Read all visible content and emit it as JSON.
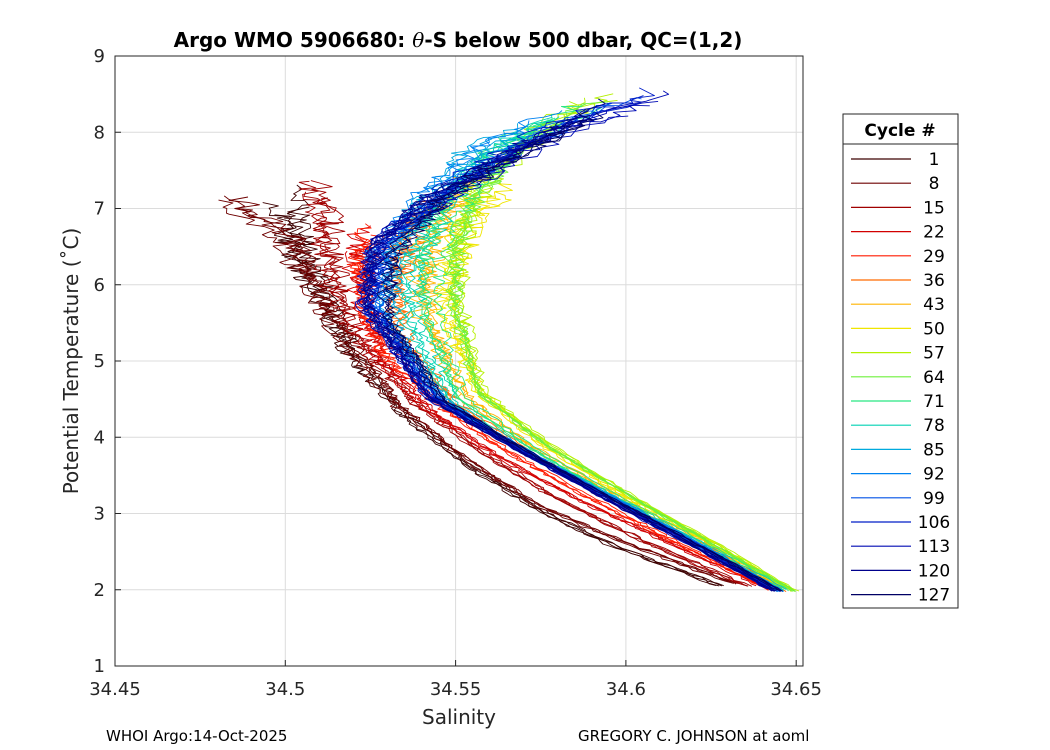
{
  "chart_data": {
    "type": "line",
    "title_prefix": "Argo WMO 5906680: ",
    "title_theta": "θ",
    "title_suffix": "-S below 500 dbar,  QC=(1,2)",
    "xlabel": "Salinity",
    "ylabel": "Potential Temperature (˚C)",
    "xlim": [
      34.45,
      34.652
    ],
    "ylim": [
      1,
      9
    ],
    "x_ticks": [
      34.45,
      34.5,
      34.55,
      34.6,
      34.65
    ],
    "x_tick_labels": [
      "34.45",
      "34.5",
      "34.55",
      "34.6",
      "34.65"
    ],
    "y_ticks": [
      1,
      2,
      3,
      4,
      5,
      6,
      7,
      8,
      9
    ],
    "y_tick_labels": [
      "1",
      "2",
      "3",
      "4",
      "5",
      "6",
      "7",
      "8",
      "9"
    ],
    "grid": true,
    "legend_title": "Cycle #",
    "legend_position": "right-outside",
    "colormap": [
      "#3c0000",
      "#6e0000",
      "#a00000",
      "#d20000",
      "#ff1a00",
      "#ff6a00",
      "#ffb400",
      "#f0e600",
      "#b4f000",
      "#6ef03c",
      "#28e682",
      "#00d2b4",
      "#00aade",
      "#0082f0",
      "#0050e6",
      "#001ec8",
      "#000ab4",
      "#00008c",
      "#000064"
    ],
    "series": [
      {
        "name": "1",
        "s": [
          34.5,
          34.505,
          34.512,
          34.52,
          34.535,
          34.555,
          34.575,
          34.598,
          34.628
        ],
        "t": [
          7.3,
          6.4,
          5.8,
          5.1,
          4.3,
          3.6,
          3.05,
          2.55,
          2.05
        ]
      },
      {
        "name": "8",
        "s": [
          34.48,
          34.5,
          34.508,
          34.518,
          34.533,
          34.553,
          34.574,
          34.6,
          34.632
        ],
        "t": [
          7.2,
          6.6,
          5.9,
          5.2,
          4.4,
          3.7,
          3.1,
          2.6,
          2.08
        ]
      },
      {
        "name": "15",
        "s": [
          34.51,
          34.512,
          34.515,
          34.522,
          34.537,
          34.558,
          34.58,
          34.605,
          34.636
        ],
        "t": [
          7.5,
          6.8,
          6.0,
          5.3,
          4.5,
          3.8,
          3.2,
          2.65,
          2.05
        ]
      },
      {
        "name": "22",
        "s": [
          34.52,
          34.521,
          34.523,
          34.528,
          34.542,
          34.562,
          34.585,
          34.612,
          34.641
        ],
        "t": [
          6.8,
          6.2,
          5.6,
          5.0,
          4.35,
          3.75,
          3.2,
          2.62,
          2.02
        ]
      },
      {
        "name": "29",
        "s": [
          34.525,
          34.524,
          34.525,
          34.53,
          34.545,
          34.566,
          34.59,
          34.616,
          34.643
        ],
        "t": [
          6.9,
          6.2,
          5.6,
          5.1,
          4.45,
          3.8,
          3.2,
          2.6,
          2.0
        ]
      },
      {
        "name": "36",
        "s": [
          34.545,
          34.535,
          34.532,
          34.535,
          34.55,
          34.571,
          34.596,
          34.622,
          34.648
        ],
        "t": [
          7.3,
          6.6,
          5.9,
          5.2,
          4.45,
          3.8,
          3.2,
          2.6,
          1.98
        ]
      },
      {
        "name": "43",
        "s": [
          34.56,
          34.545,
          34.54,
          34.541,
          34.553,
          34.573,
          34.598,
          34.624,
          34.648
        ],
        "t": [
          7.6,
          6.9,
          6.2,
          5.5,
          4.5,
          3.85,
          3.2,
          2.6,
          1.97
        ]
      },
      {
        "name": "50",
        "s": [
          34.565,
          34.552,
          34.548,
          34.547,
          34.556,
          34.575,
          34.6,
          34.625,
          34.649
        ],
        "t": [
          7.4,
          6.8,
          6.2,
          5.6,
          4.6,
          3.9,
          3.2,
          2.6,
          1.97
        ]
      },
      {
        "name": "57",
        "s": [
          34.6,
          34.575,
          34.558,
          34.552,
          34.551,
          34.558,
          34.578,
          34.601,
          34.626,
          34.65
        ],
        "t": [
          8.6,
          8.0,
          7.3,
          6.6,
          5.8,
          4.6,
          3.9,
          3.25,
          2.62,
          1.98
        ]
      },
      {
        "name": "64",
        "s": [
          34.595,
          34.57,
          34.555,
          34.549,
          34.549,
          34.556,
          34.576,
          34.6,
          34.625,
          34.649
        ],
        "t": [
          8.5,
          7.9,
          7.2,
          6.5,
          5.7,
          4.6,
          3.9,
          3.25,
          2.6,
          1.98
        ]
      },
      {
        "name": "71",
        "s": [
          34.59,
          34.565,
          34.55,
          34.543,
          34.543,
          34.552,
          34.573,
          34.598,
          34.623,
          34.647
        ],
        "t": [
          8.4,
          7.8,
          7.1,
          6.4,
          5.6,
          4.5,
          3.85,
          3.2,
          2.6,
          1.99
        ]
      },
      {
        "name": "78",
        "s": [
          34.585,
          34.56,
          34.545,
          34.537,
          34.537,
          34.549,
          34.571,
          34.597,
          34.622,
          34.646
        ],
        "t": [
          8.3,
          7.7,
          7.0,
          6.3,
          5.5,
          4.45,
          3.8,
          3.2,
          2.6,
          2.0
        ]
      },
      {
        "name": "85",
        "s": [
          34.58,
          34.555,
          34.54,
          34.531,
          34.531,
          34.547,
          34.57,
          34.596,
          34.621,
          34.645
        ],
        "t": [
          8.3,
          7.7,
          7.0,
          6.3,
          5.5,
          4.45,
          3.8,
          3.2,
          2.6,
          1.99
        ]
      },
      {
        "name": "92",
        "s": [
          34.59,
          34.56,
          34.54,
          34.528,
          34.527,
          34.545,
          34.569,
          34.596,
          34.621,
          34.645
        ],
        "t": [
          8.4,
          7.8,
          7.1,
          6.4,
          5.6,
          4.5,
          3.85,
          3.2,
          2.6,
          1.98
        ]
      },
      {
        "name": "99",
        "s": [
          34.6,
          34.57,
          34.545,
          34.527,
          34.525,
          34.544,
          34.569,
          34.595,
          34.62,
          34.645
        ],
        "t": [
          8.5,
          7.9,
          7.2,
          6.5,
          5.7,
          4.5,
          3.85,
          3.2,
          2.6,
          1.98
        ]
      },
      {
        "name": "106",
        "s": [
          34.61,
          34.575,
          34.548,
          34.526,
          34.524,
          34.543,
          34.568,
          34.595,
          34.62,
          34.644
        ],
        "t": [
          8.6,
          8.0,
          7.3,
          6.5,
          5.7,
          4.5,
          3.85,
          3.2,
          2.6,
          1.97
        ]
      },
      {
        "name": "113",
        "s": [
          34.62,
          34.58,
          34.552,
          34.528,
          34.523,
          34.542,
          34.568,
          34.594,
          34.619,
          34.644
        ],
        "t": [
          8.6,
          8.0,
          7.3,
          6.6,
          5.8,
          4.55,
          3.85,
          3.2,
          2.6,
          1.97
        ]
      },
      {
        "name": "120",
        "s": [
          34.6,
          34.575,
          34.545,
          34.527,
          34.525,
          34.543,
          34.568,
          34.594,
          34.619,
          34.644
        ],
        "t": [
          8.5,
          7.9,
          7.2,
          6.5,
          5.7,
          4.5,
          3.85,
          3.2,
          2.6,
          1.98
        ]
      },
      {
        "name": "127",
        "s": [
          34.59,
          34.57,
          34.543,
          34.53,
          34.528,
          34.545,
          34.569,
          34.595,
          34.62,
          34.645
        ],
        "t": [
          8.3,
          7.8,
          7.1,
          6.4,
          5.6,
          4.5,
          3.85,
          3.2,
          2.6,
          1.98
        ]
      }
    ]
  },
  "footer": {
    "left": "WHOI Argo:14-Oct-2025",
    "right": "GREGORY C. JOHNSON at aoml"
  }
}
